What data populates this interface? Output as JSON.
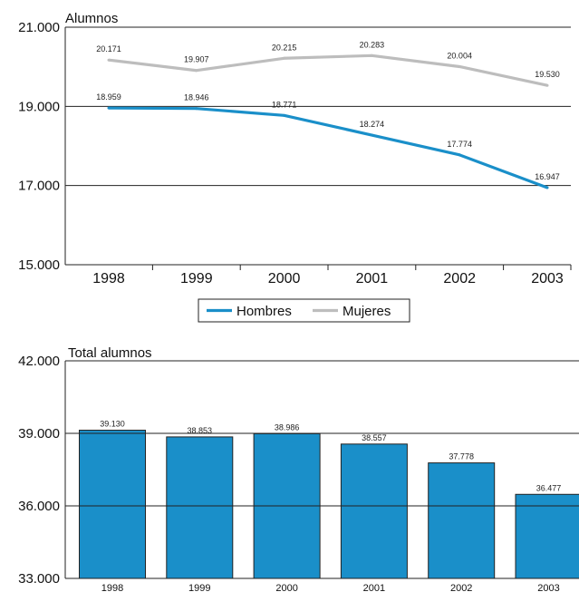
{
  "chart_data": [
    {
      "type": "line",
      "title": "Alumnos",
      "categories": [
        "1998",
        "1999",
        "2000",
        "2001",
        "2002",
        "2003"
      ],
      "ylim": [
        15000,
        21000
      ],
      "yticks": [
        15000,
        17000,
        19000,
        21000
      ],
      "ytick_labels": [
        "15.000",
        "17.000",
        "19.000",
        "21.000"
      ],
      "series": [
        {
          "name": "Hombres",
          "color": "#1a8fc9",
          "values": [
            18959,
            18946,
            18771,
            18274,
            17774,
            16947
          ],
          "labels": [
            "18.959",
            "18.946",
            "18.771",
            "18.274",
            "17.774",
            "16.947"
          ]
        },
        {
          "name": "Mujeres",
          "color": "#bdbdbd",
          "values": [
            20171,
            19907,
            20215,
            20283,
            20004,
            19530
          ],
          "labels": [
            "20.171",
            "19.907",
            "20.215",
            "20.283",
            "20.004",
            "19.530"
          ]
        }
      ],
      "grid": true,
      "legend": "bottom-center"
    },
    {
      "type": "bar",
      "title": "Total alumnos",
      "categories": [
        "1998",
        "1999",
        "2000",
        "2001",
        "2002",
        "2003"
      ],
      "ylim": [
        33000,
        42000
      ],
      "yticks": [
        33000,
        36000,
        39000,
        42000
      ],
      "ytick_labels": [
        "33.000",
        "36.000",
        "39.000",
        "42.000"
      ],
      "series": [
        {
          "name": "",
          "color": "#1a8fc9",
          "values": [
            39130,
            38853,
            38986,
            38557,
            37778,
            36477
          ],
          "labels": [
            "39.130",
            "38.853",
            "38.986",
            "38.557",
            "37.778",
            "36.477"
          ]
        }
      ],
      "grid": true
    }
  ]
}
